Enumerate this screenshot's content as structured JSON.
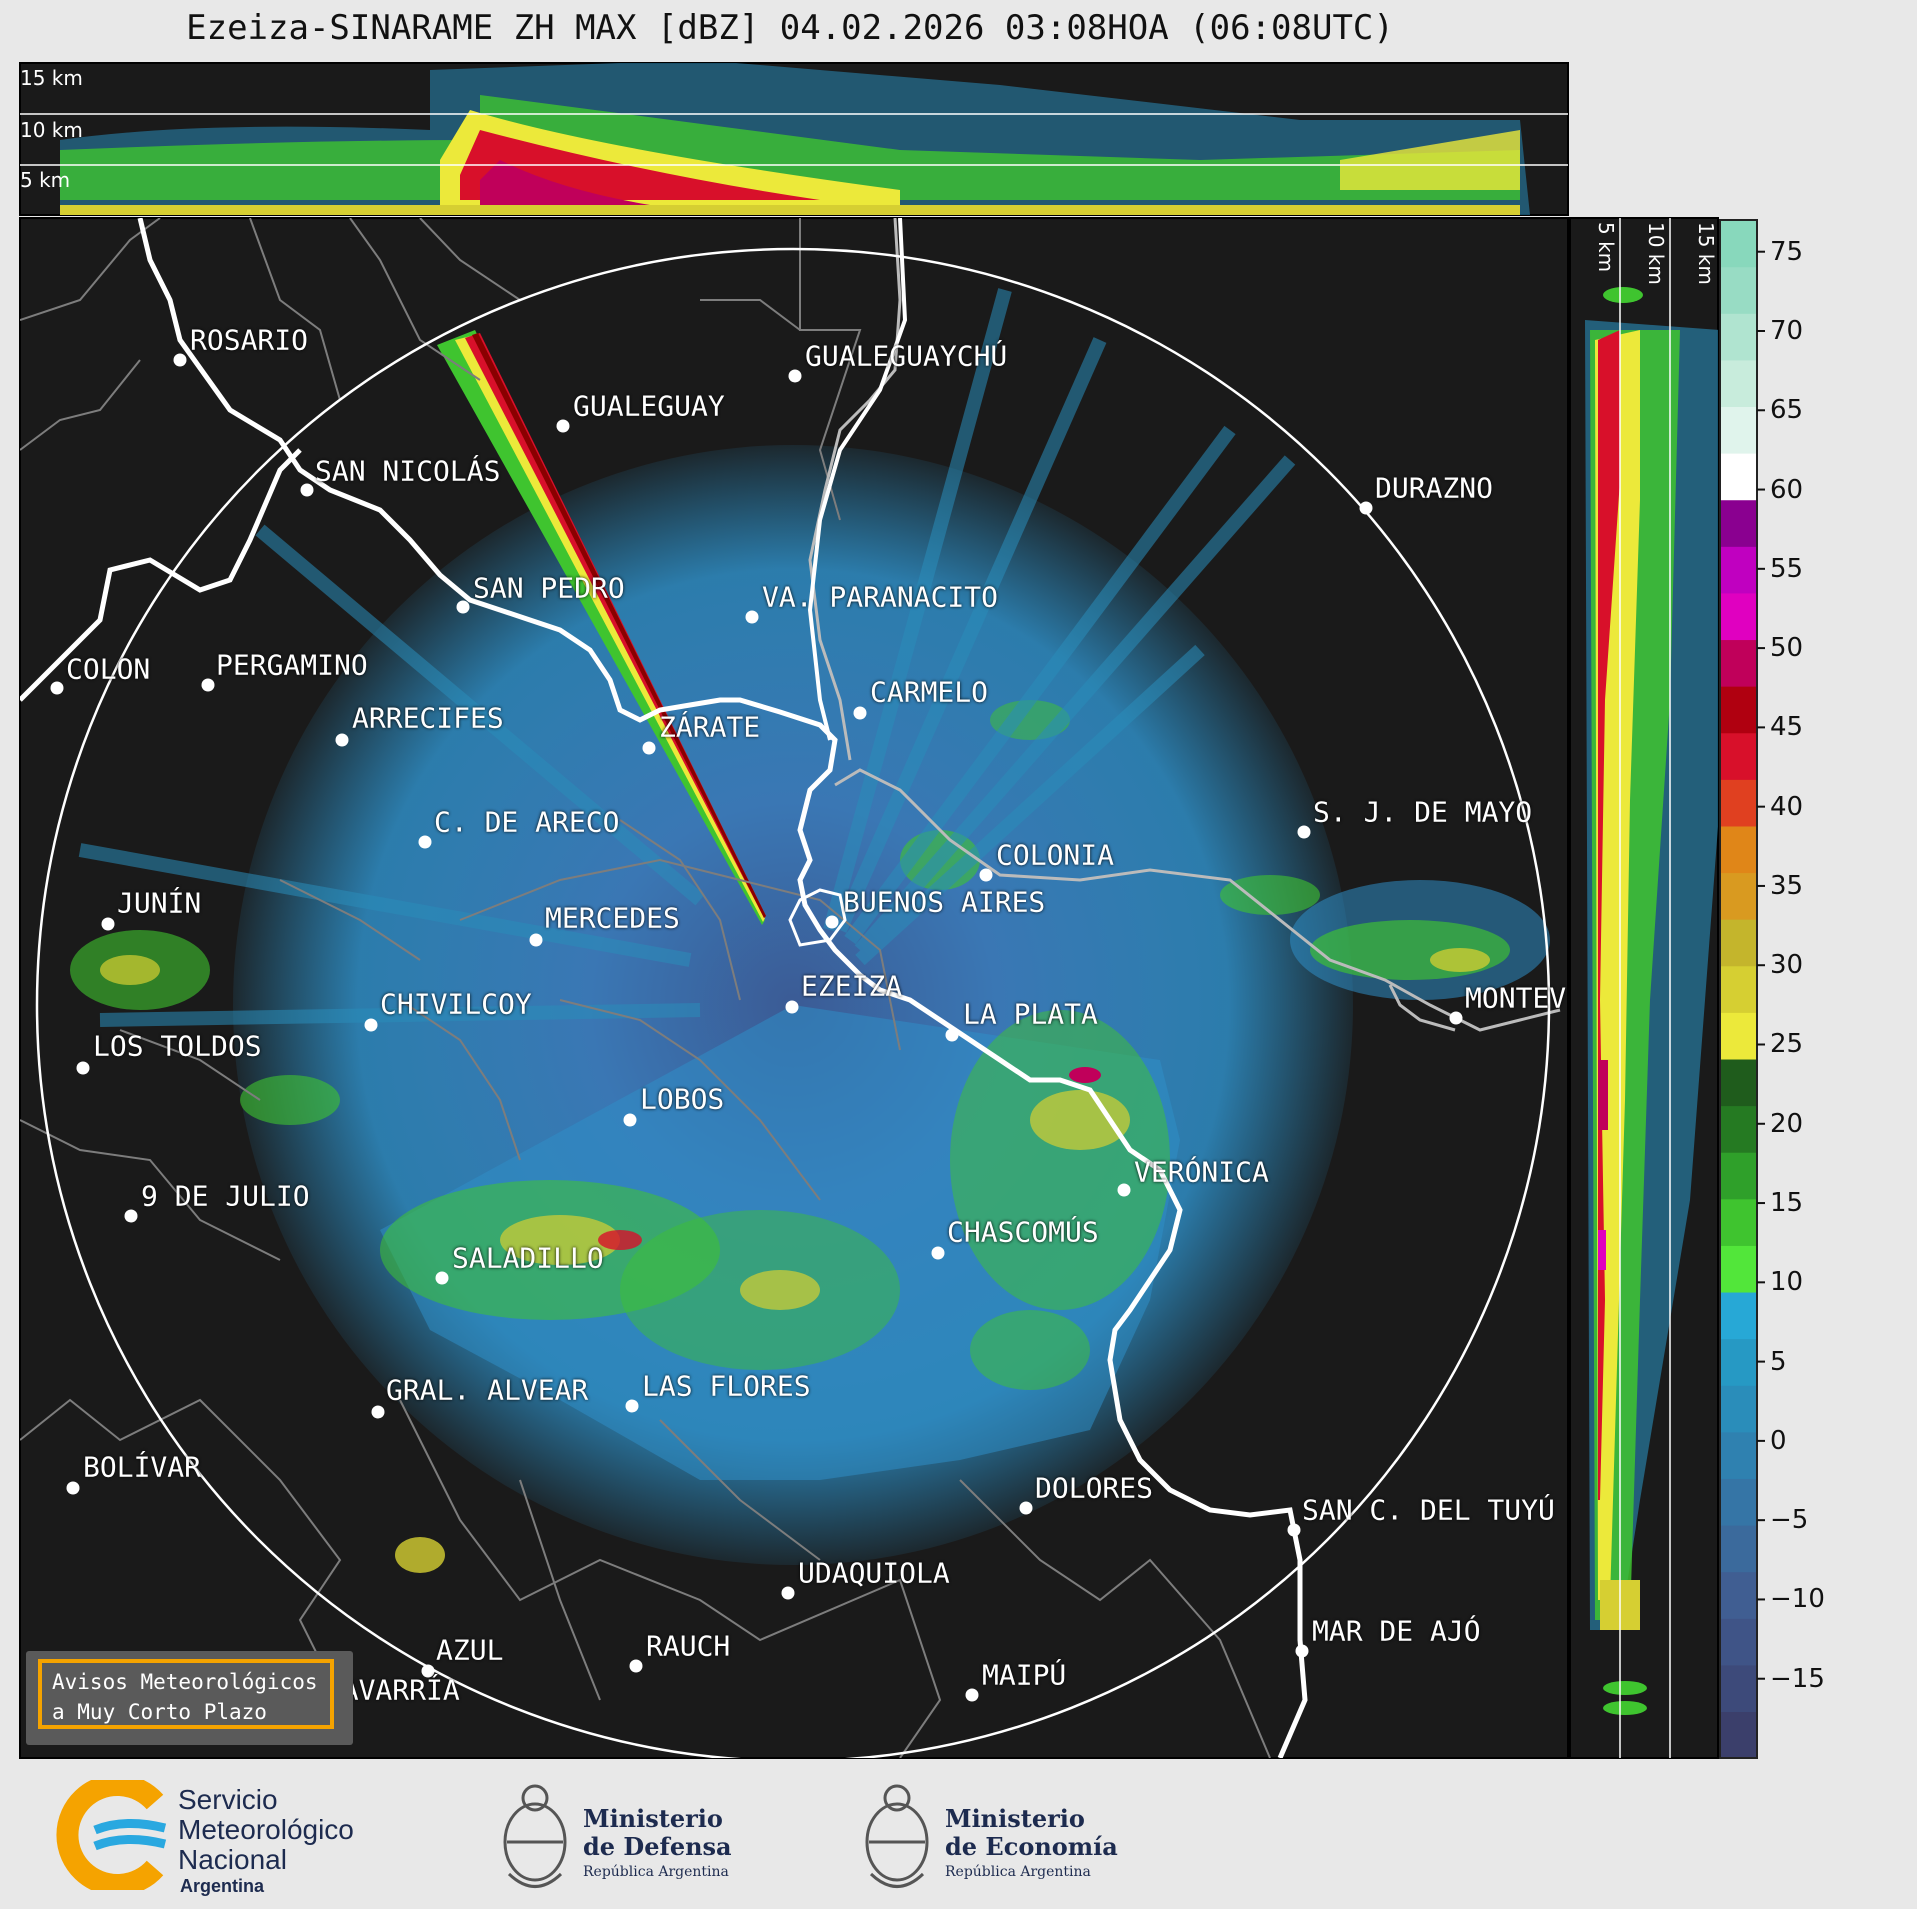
{
  "header": {
    "title": "Ezeiza-SINARAME ZH MAX [dBZ] 04.02.2026 03:08HOA (06:08UTC)"
  },
  "top_panel": {
    "levels": [
      "15 km",
      "10 km",
      "5 km"
    ]
  },
  "side_panel": {
    "levels": [
      "5 km",
      "10 km",
      "15 km"
    ]
  },
  "colorbar": {
    "ticks": [
      "75",
      "70",
      "65",
      "60",
      "55",
      "50",
      "45",
      "40",
      "35",
      "30",
      "25",
      "20",
      "15",
      "10",
      "5",
      "0",
      "−5",
      "−10",
      "−15"
    ],
    "range": [
      -20,
      77
    ],
    "colors": [
      "#3b3f6b",
      "#3d4a7a",
      "#3f5487",
      "#405e92",
      "#3b6a9c",
      "#3575a6",
      "#2f81b0",
      "#2a8dba",
      "#2699c4",
      "#27a8d6",
      "#52e63a",
      "#3fc42f",
      "#2fa02a",
      "#257a22",
      "#1f5c1c",
      "#ece93a",
      "#d6cf32",
      "#c4b52c",
      "#d99a20",
      "#e08618",
      "#e04020",
      "#d8102a",
      "#b00010",
      "#c0005a",
      "#e000c0",
      "#c000c0",
      "#8a0090",
      "#ffffff",
      "#e0f4ec",
      "#c8ecdc",
      "#b0e4d0",
      "#98dcc4",
      "#88d8bc"
    ]
  },
  "map": {
    "cities": [
      {
        "name": "ROSARIO"
      },
      {
        "name": "GUALEGUAYCHÚ"
      },
      {
        "name": "GUALEGUAY"
      },
      {
        "name": "SAN NICOLÁS"
      },
      {
        "name": "DURAZNO"
      },
      {
        "name": "SAN PEDRO"
      },
      {
        "name": "VA. PARANACITO"
      },
      {
        "name": "COLON"
      },
      {
        "name": "PERGAMINO"
      },
      {
        "name": "CARMELO"
      },
      {
        "name": "ARRECIFES"
      },
      {
        "name": "ZÁRATE"
      },
      {
        "name": "S. J. DE MAYO"
      },
      {
        "name": "C. DE ARECO"
      },
      {
        "name": "COLONIA"
      },
      {
        "name": "JUNÍN"
      },
      {
        "name": "BUENOS AIRES"
      },
      {
        "name": "MERCEDES"
      },
      {
        "name": "EZEIZA"
      },
      {
        "name": "MONTEV"
      },
      {
        "name": "CHIVILCOY"
      },
      {
        "name": "LA PLATA"
      },
      {
        "name": "LOS TOLDOS"
      },
      {
        "name": "LOBOS"
      },
      {
        "name": "VERÓNICA"
      },
      {
        "name": "9 DE JULIO"
      },
      {
        "name": "CHASCOMÚS"
      },
      {
        "name": "SALADILLO"
      },
      {
        "name": "GRAL. ALVEAR"
      },
      {
        "name": "LAS FLORES"
      },
      {
        "name": "BOLÍVAR"
      },
      {
        "name": "DOLORES"
      },
      {
        "name": "SAN C. DEL TUYÚ"
      },
      {
        "name": "UDAQUIOLA"
      },
      {
        "name": "MAR DE AJÓ"
      },
      {
        "name": "RAUCH"
      },
      {
        "name": "AZUL"
      },
      {
        "name": "OLAVARRÍA"
      },
      {
        "name": "MAIPÚ"
      }
    ]
  },
  "alert_box": {
    "line1": "Avisos Meteorológicos",
    "line2": "a Muy Corto Plazo"
  },
  "footer": {
    "smn": {
      "line1": "Servicio",
      "line2": "Meteorológico",
      "line3": "Nacional",
      "line4": "Argentina"
    },
    "defensa": {
      "line1": "Ministerio",
      "line2": "de Defensa",
      "line3": "República Argentina"
    },
    "economia": {
      "line1": "Ministerio",
      "line2": "de Economía",
      "line3": "República Argentina"
    }
  }
}
